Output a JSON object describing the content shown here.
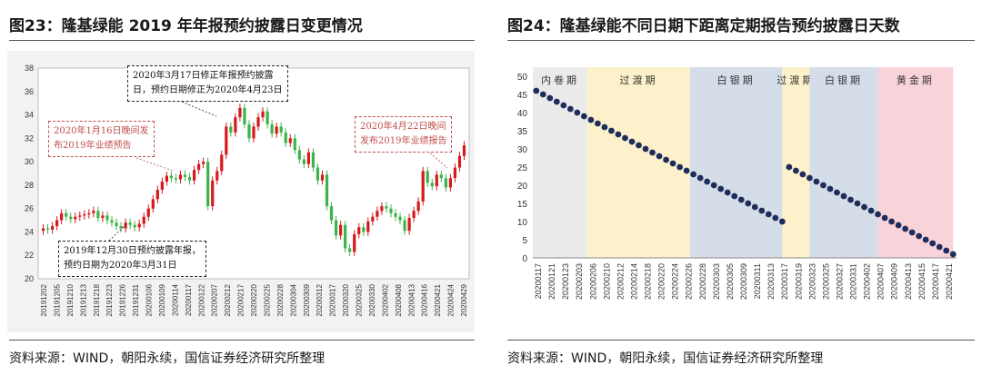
{
  "left": {
    "title": "图23：隆基绿能 2019 年年报预约披露日变更情况",
    "source": "资料来源：WIND，朝阳永续，国信证券经济研究所整理",
    "annotations": [
      {
        "lines": [
          "2020年1月16日晚间发",
          "布2019年业绩预告"
        ]
      },
      {
        "lines": [
          "2020年3月17日修正年报预约披露",
          "日，预约日期修正为2020年4月23日"
        ]
      },
      {
        "lines": [
          "2020年4月22日晚间",
          "发布2019年业绩报告"
        ]
      },
      {
        "lines": [
          "2019年12月30日预约披露年报，",
          "预约日期为2020年3月31日"
        ]
      }
    ]
  },
  "right": {
    "title": "图24：隆基绿能不同日期下距离定期报告预约披露日天数",
    "source": "资料来源：WIND，朝阳永续，国信证券经济研究所整理"
  },
  "colors": {
    "up": "#d7191c",
    "down": "#3bb54a",
    "dot": "#1f2d5c"
  },
  "chart_data": [
    {
      "type": "candlestick",
      "title": "",
      "ylim": [
        20,
        38
      ],
      "yticks": [
        20,
        22,
        24,
        26,
        28,
        30,
        32,
        34,
        36,
        38
      ],
      "xticks": [
        "20191202",
        "20191205",
        "20191210",
        "20191213",
        "20191218",
        "20191223",
        "20191226",
        "20191231",
        "20200106",
        "20200109",
        "20200114",
        "20200117",
        "20200122",
        "20200207",
        "20200212",
        "20200217",
        "20200220",
        "20200225",
        "20200228",
        "20200304",
        "20200309",
        "20200312",
        "20200317",
        "20200320",
        "20200325",
        "20200330",
        "20200402",
        "20200408",
        "20200413",
        "20200416",
        "20200421",
        "20200424",
        "20200429"
      ],
      "close": [
        24.3,
        24.2,
        24.5,
        25.0,
        25.6,
        25.3,
        25.1,
        25.3,
        25.4,
        25.5,
        25.6,
        25.8,
        25.2,
        25.4,
        25.0,
        24.8,
        24.5,
        24.3,
        24.8,
        24.6,
        24.4,
        24.7,
        25.3,
        26.0,
        26.8,
        27.6,
        28.3,
        28.8,
        28.6,
        28.5,
        28.9,
        28.7,
        28.4,
        29.3,
        29.8,
        30.0,
        26.2,
        28.4,
        29.2,
        30.6,
        33.0,
        32.5,
        33.8,
        34.6,
        33.2,
        32.0,
        33.0,
        33.8,
        34.3,
        33.2,
        32.4,
        33.0,
        32.5,
        31.6,
        32.0,
        31.0,
        30.2,
        29.8,
        30.8,
        29.5,
        28.4,
        28.9,
        26.2,
        25.0,
        23.7,
        24.6,
        22.6,
        22.3,
        23.8,
        24.4,
        24.0,
        24.9,
        25.3,
        25.8,
        26.2,
        26.0,
        25.6,
        25.3,
        25.0,
        24.1,
        25.2,
        25.8,
        26.6,
        29.2,
        28.2,
        27.9,
        28.9,
        28.6,
        27.8,
        28.6,
        29.5,
        30.5,
        31.4
      ]
    },
    {
      "type": "scatter",
      "title": "",
      "ylim": [
        0,
        50
      ],
      "yticks": [
        0,
        5,
        10,
        15,
        20,
        25,
        30,
        35,
        40,
        45,
        50
      ],
      "x_start": "20200117",
      "xticks": [
        "20200117",
        "20200121",
        "20200123",
        "20200203",
        "20200206",
        "20200210",
        "20200212",
        "20200214",
        "20200218",
        "20200220",
        "20200224",
        "20200226",
        "20200228",
        "20200303",
        "20200305",
        "20200309",
        "20200311",
        "20200313",
        "20200317",
        "20200319",
        "20200323",
        "20200325",
        "20200327",
        "20200331",
        "20200402",
        "20200407",
        "20200409",
        "20200413",
        "20200415",
        "20200417",
        "20200421"
      ],
      "y": [
        46,
        45,
        44,
        43,
        42,
        41,
        40,
        39,
        38,
        37,
        36,
        35,
        34,
        33,
        32,
        31,
        30,
        29,
        28,
        27,
        26,
        25,
        24,
        23,
        22,
        21,
        20,
        19,
        18,
        17,
        16,
        15,
        14,
        13,
        12,
        11,
        10,
        25,
        24,
        23,
        22,
        21,
        20,
        19,
        18,
        17,
        16,
        15,
        14,
        13,
        12,
        11,
        10,
        9,
        8,
        7,
        6,
        5,
        4,
        3,
        2,
        1
      ],
      "bands": [
        {
          "label": "内卷期",
          "from": 0,
          "to": 8,
          "color": "#ebebeb"
        },
        {
          "label": "过渡期",
          "from": 8,
          "to": 23,
          "color": "#fdf1cc"
        },
        {
          "label": "白银期",
          "from": 23,
          "to": 36.5,
          "color": "#d5dee8"
        },
        {
          "label": "过渡期",
          "from": 36.5,
          "to": 40.5,
          "color": "#fdf1cc"
        },
        {
          "label": "白银期",
          "from": 40.5,
          "to": 50.5,
          "color": "#d5dee8"
        },
        {
          "label": "黄金期",
          "from": 50.5,
          "to": 61.5,
          "color": "#f8d3d9"
        }
      ]
    }
  ]
}
